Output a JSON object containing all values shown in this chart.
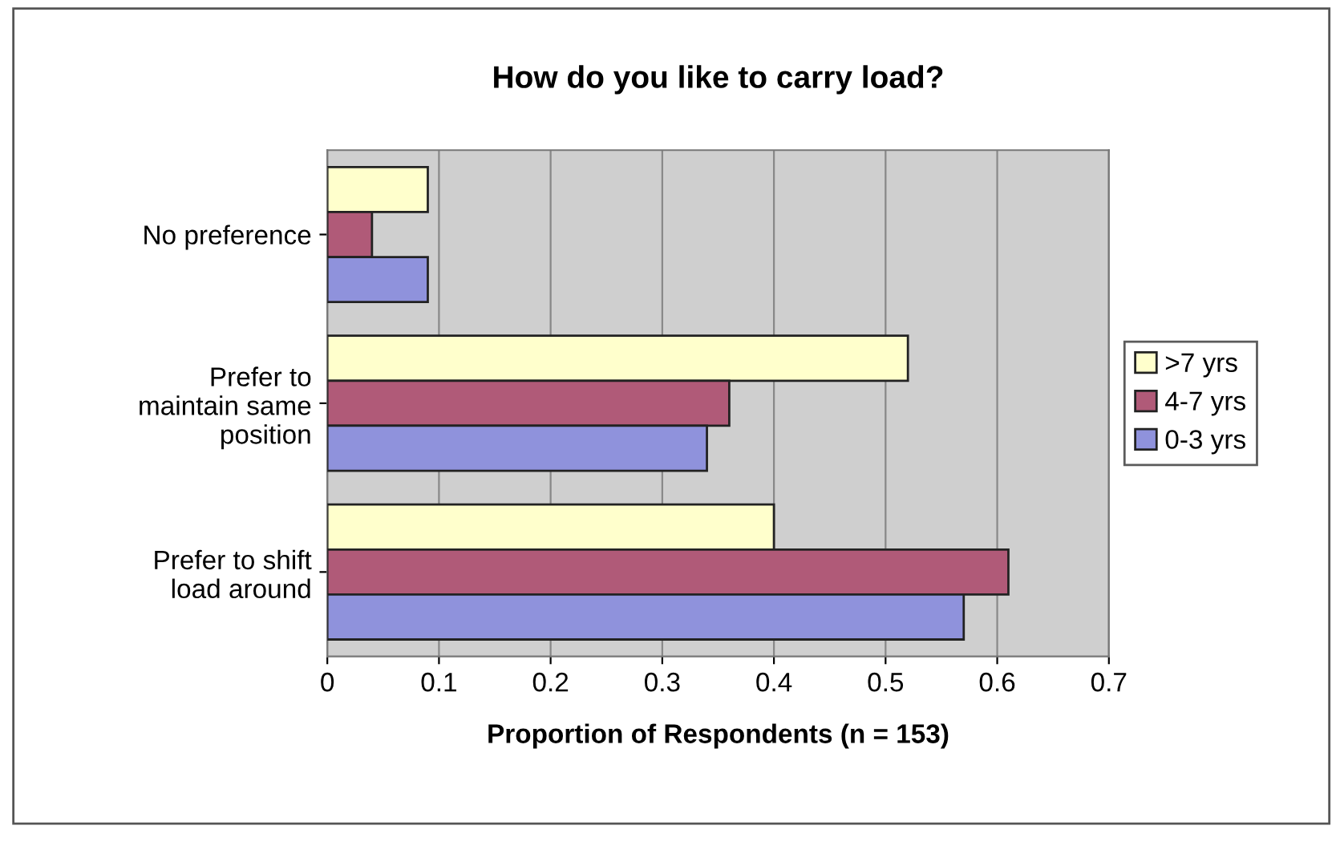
{
  "chart_data": {
    "type": "bar",
    "orientation": "horizontal",
    "title": "How do you like to carry load?",
    "xlabel": "Proportion of Respondents (n = 153)",
    "categories": [
      "No preference",
      "Prefer to\nmaintain same\nposition",
      "Prefer to shift\nload around"
    ],
    "series": [
      {
        "name": ">7 yrs",
        "color": "#ffffcc",
        "values": [
          0.09,
          0.52,
          0.4
        ]
      },
      {
        "name": "4-7 yrs",
        "color": "#b05a78",
        "values": [
          0.04,
          0.36,
          0.61
        ]
      },
      {
        "name": "0-3 yrs",
        "color": "#8f92dc",
        "values": [
          0.09,
          0.34,
          0.57
        ]
      }
    ],
    "xlim": [
      0,
      0.7
    ],
    "xticks": [
      0,
      0.1,
      0.2,
      0.3,
      0.4,
      0.5,
      0.6,
      0.7
    ],
    "grid": "x",
    "legend": "right"
  }
}
